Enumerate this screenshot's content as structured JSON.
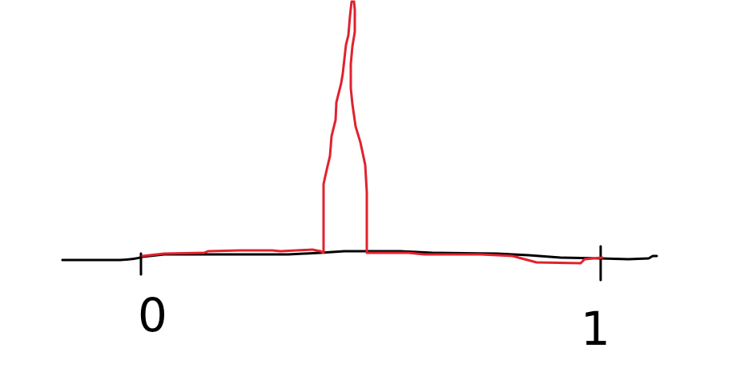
{
  "axis": {
    "labels": [
      "0",
      "1"
    ]
  }
}
